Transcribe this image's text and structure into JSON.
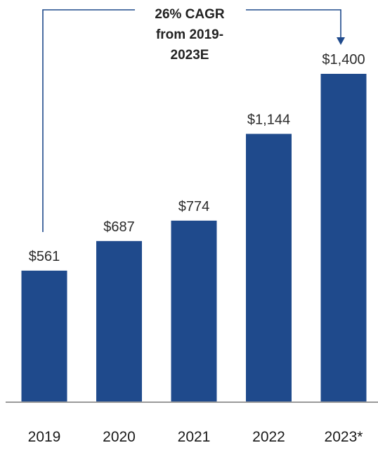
{
  "chart_data": {
    "type": "bar",
    "categories": [
      "2019",
      "2020",
      "2021",
      "2022",
      "2023*"
    ],
    "values": [
      561,
      687,
      774,
      1144,
      1400
    ],
    "value_labels": [
      "$561",
      "$687",
      "$774",
      "$1,144",
      "$1,400"
    ],
    "annotation": {
      "lines": [
        "26% CAGR",
        "from 2019-",
        "2023E"
      ],
      "from_category": "2019",
      "to_category": "2023*"
    },
    "ylim": [
      0,
      1400
    ],
    "grid": false,
    "legend": "none",
    "bar_color": "#1f4a8c",
    "bracket_color": "#1f4a8c",
    "baseline_color": "#9a9a9a"
  }
}
